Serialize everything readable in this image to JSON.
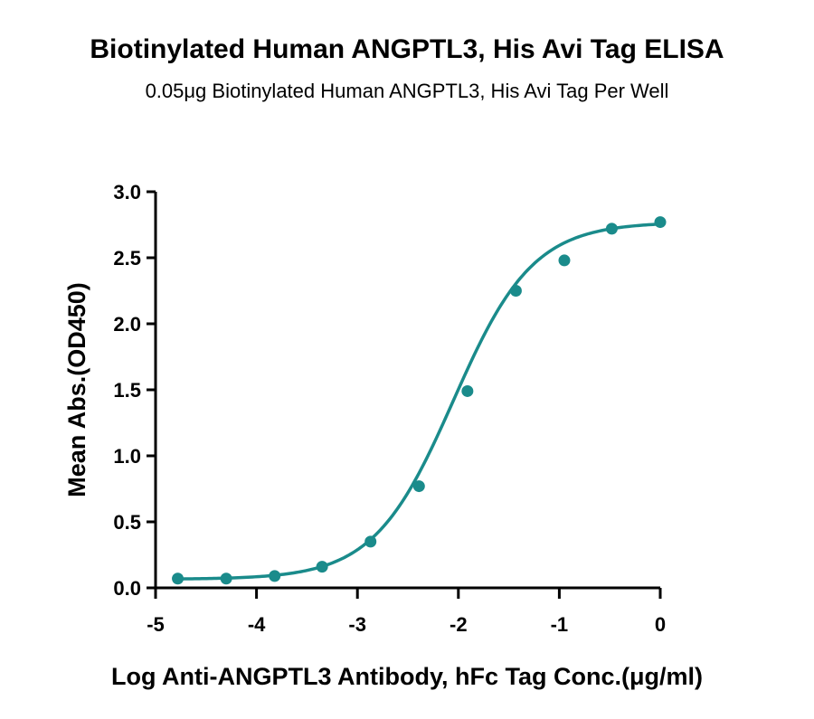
{
  "chart_data": {
    "type": "scatter",
    "title": "Biotinylated Human ANGPTL3, His Avi Tag ELISA",
    "subtitle": "0.05μg Biotinylated Human ANGPTL3, His Avi Tag Per Well",
    "xlabel": "Log Anti-ANGPTL3 Antibody, hFc Tag Conc.(μg/ml)",
    "ylabel": "Mean Abs.(OD450)",
    "xlim": [
      -5,
      0
    ],
    "ylim": [
      0,
      3.0
    ],
    "x_ticks": [
      "-5",
      "-4",
      "-3",
      "-2",
      "-1",
      "0"
    ],
    "y_ticks": [
      "0.0",
      "0.5",
      "1.0",
      "1.5",
      "2.0",
      "2.5",
      "3.0"
    ],
    "grid": false,
    "series": [
      {
        "color": "#1a8b8b",
        "x": [
          -4.78,
          -4.3,
          -3.82,
          -3.35,
          -2.87,
          -2.39,
          -1.91,
          -1.43,
          -0.95,
          -0.48,
          0.0
        ],
        "y": [
          0.07,
          0.07,
          0.09,
          0.16,
          0.35,
          0.77,
          1.49,
          2.25,
          2.48,
          2.72,
          2.77
        ],
        "fit": {
          "model": "4PL",
          "bottom": 0.065,
          "top": 2.77,
          "logEC50": -2.05,
          "hill": 1.1
        }
      }
    ]
  }
}
